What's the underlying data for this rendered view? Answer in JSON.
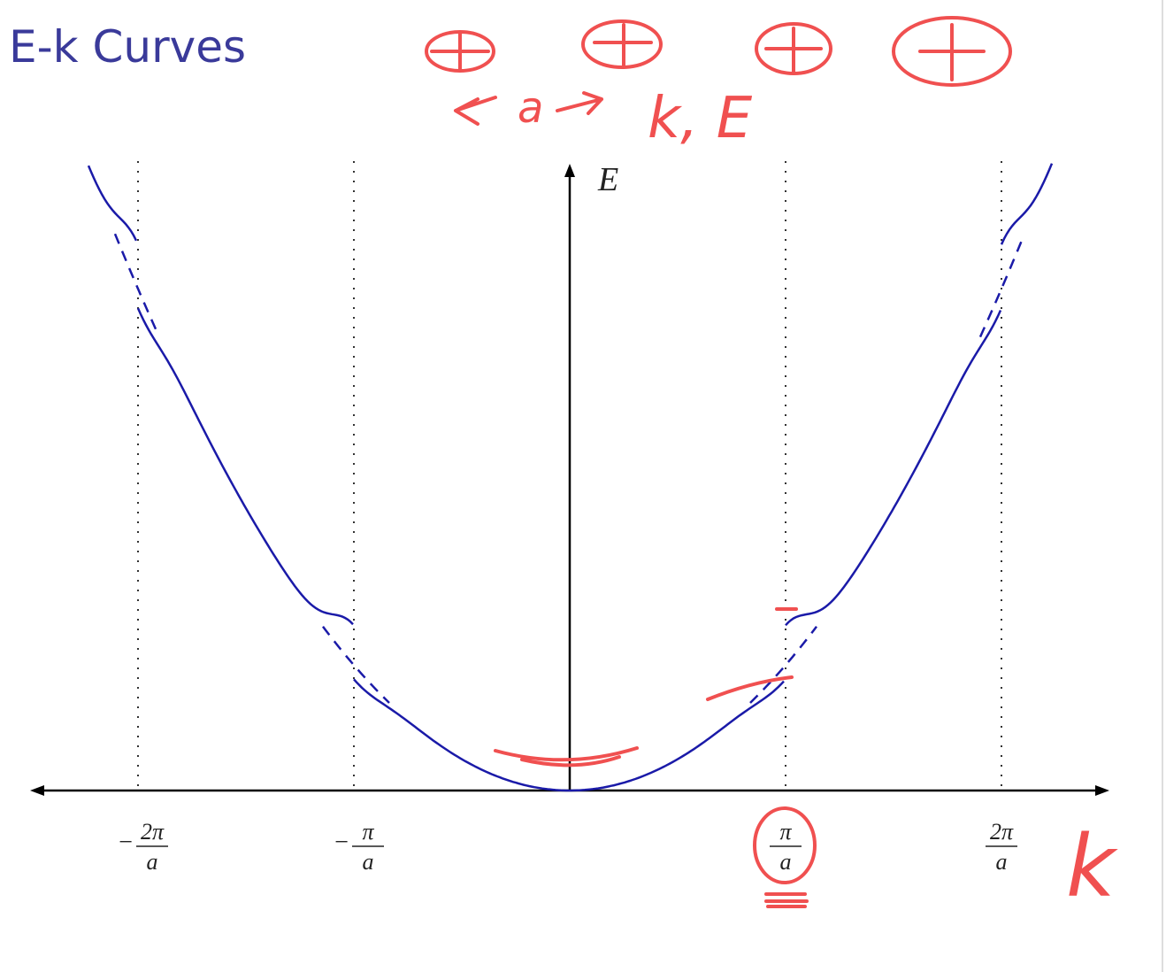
{
  "title": "E-k Curves",
  "axes": {
    "y_label": "E",
    "x_label": "k"
  },
  "x_ticks": [
    {
      "sign": "−",
      "numerator": "2π",
      "denominator": "a"
    },
    {
      "sign": "−",
      "numerator": "π",
      "denominator": "a"
    },
    {
      "numerator": "π",
      "denominator": "a"
    },
    {
      "numerator": "2π",
      "denominator": "a"
    }
  ],
  "annotations": {
    "lattice_spacing": "a",
    "note": "k, E"
  }
}
